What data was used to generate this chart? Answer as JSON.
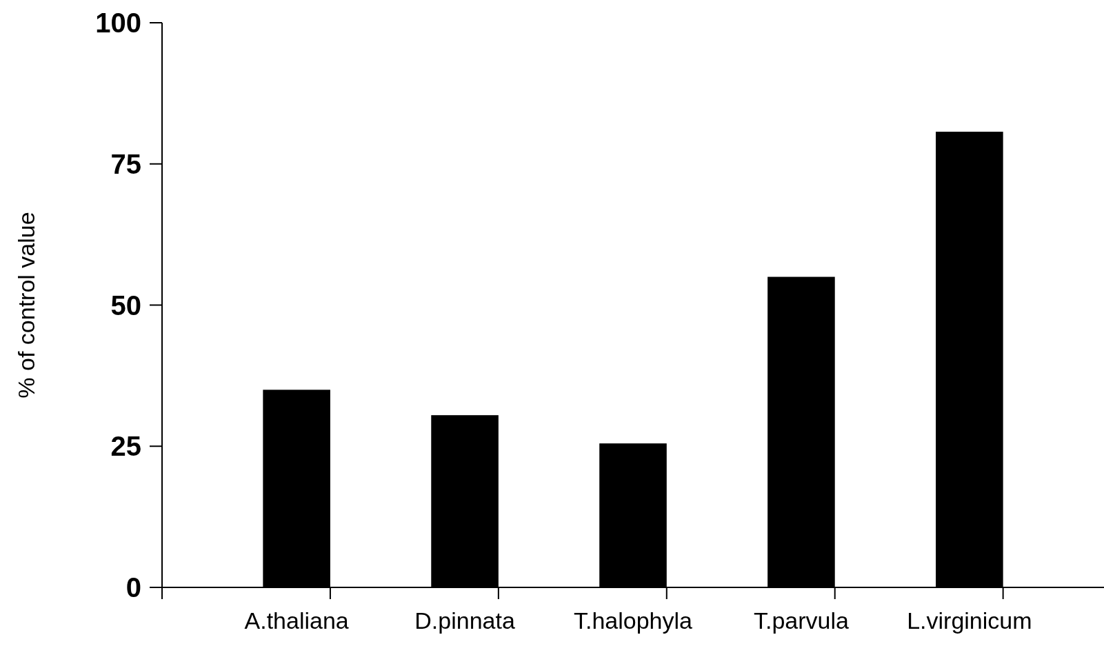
{
  "chart_data": {
    "type": "bar",
    "ylabel": "% of control value",
    "categories": [
      "A.thaliana",
      "D.pinnata",
      "T.halophyla",
      "T.parvula",
      "L.virginicum"
    ],
    "values": [
      35,
      30.5,
      25.5,
      55,
      80.7
    ],
    "color": "#000000",
    "ylim": [
      0,
      100
    ],
    "yticks": [
      0,
      25,
      50,
      75,
      100
    ],
    "grid": false
  }
}
